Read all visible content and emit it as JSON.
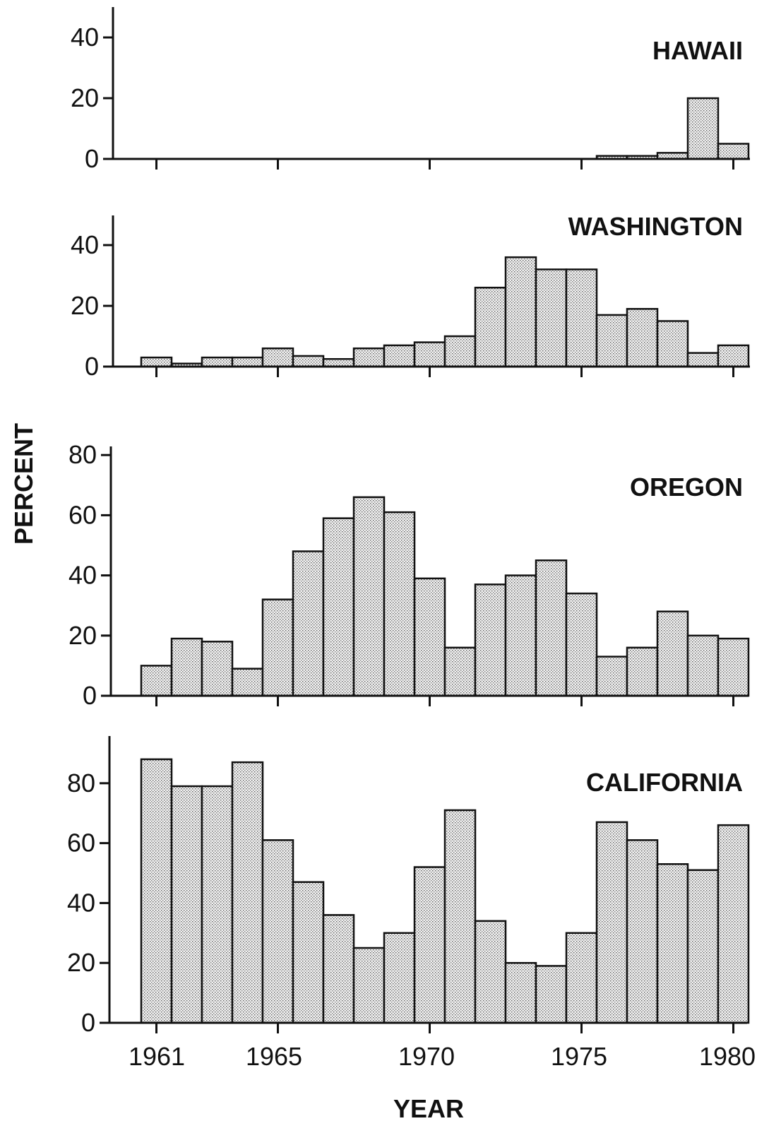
{
  "chart_data": {
    "type": "bar",
    "xlabel": "YEAR",
    "ylabel": "PERCENT",
    "x_tick_labels": [
      "1961",
      "1965",
      "1970",
      "1975",
      "1980"
    ],
    "categories": [
      "1961",
      "1962",
      "1963",
      "1964",
      "1965",
      "1966",
      "1967",
      "1968",
      "1969",
      "1970",
      "1971",
      "1972",
      "1973",
      "1974",
      "1975",
      "1976",
      "1977",
      "1978",
      "1979",
      "1980"
    ],
    "series": [
      {
        "name": "HAWAII",
        "ylim": [
          0,
          50
        ],
        "yticks": [
          "0",
          "20",
          "40"
        ],
        "values": [
          0,
          0,
          0,
          0,
          0,
          0,
          0,
          0,
          0,
          0,
          0,
          0,
          0,
          0,
          0,
          1,
          1,
          2,
          20,
          5
        ]
      },
      {
        "name": "WASHINGTON",
        "ylim": [
          0,
          50
        ],
        "yticks": [
          "0",
          "20",
          "40"
        ],
        "values": [
          3,
          1,
          3,
          3,
          6,
          3.5,
          2.5,
          6,
          7,
          8,
          10,
          26,
          36,
          32,
          32,
          17,
          19,
          15,
          4.5,
          7
        ]
      },
      {
        "name": "OREGON",
        "ylim": [
          0,
          80
        ],
        "yticks": [
          "0",
          "20",
          "40",
          "60",
          "80"
        ],
        "values": [
          10,
          19,
          18,
          9,
          32,
          48,
          59,
          66,
          61,
          39,
          16,
          37,
          40,
          45,
          34,
          13,
          16,
          28,
          20,
          19
        ]
      },
      {
        "name": "CALIFORNIA",
        "ylim": [
          0,
          95
        ],
        "yticks": [
          "0",
          "20",
          "40",
          "60",
          "80"
        ],
        "values": [
          88,
          79,
          79,
          87,
          61,
          47,
          36,
          25,
          30,
          52,
          71,
          34,
          20,
          19,
          30,
          67,
          61,
          53,
          51,
          66
        ]
      }
    ]
  }
}
